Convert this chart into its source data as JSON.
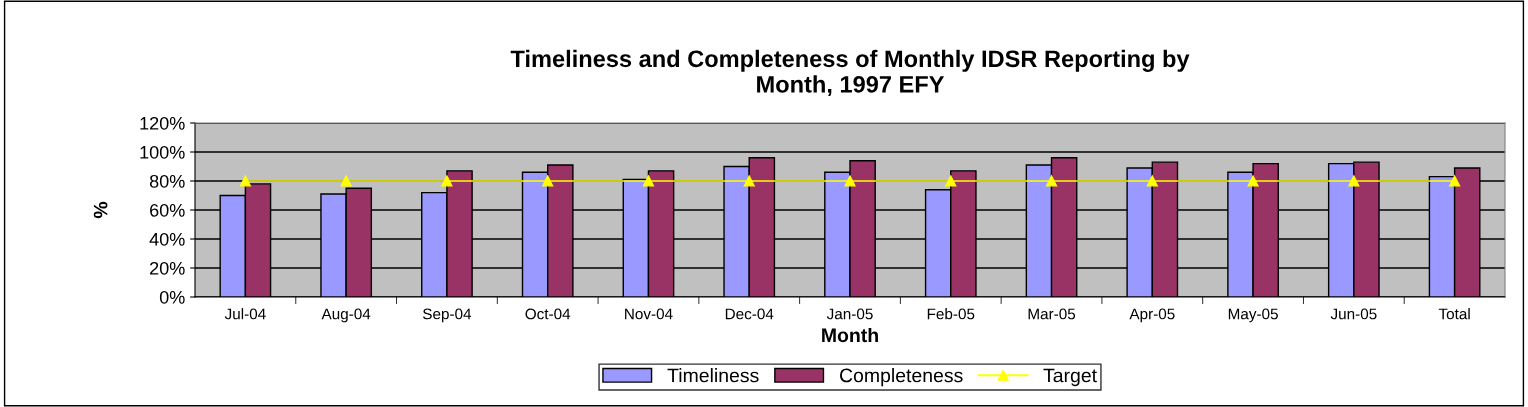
{
  "chart_data": {
    "type": "bar",
    "title": "Timeliness and Completeness of Monthly IDSR Reporting by\nMonth, 1997 EFY",
    "xlabel": "Month",
    "ylabel": "%",
    "categories": [
      "Jul-04",
      "Aug-04",
      "Sep-04",
      "Oct-04",
      "Nov-04",
      "Dec-04",
      "Jan-05",
      "Feb-05",
      "Mar-05",
      "Apr-05",
      "May-05",
      "Jun-05",
      "Total"
    ],
    "series": [
      {
        "name": "Timeliness",
        "color": "#9999ff",
        "values": [
          70,
          71,
          72,
          86,
          81,
          90,
          86,
          74,
          91,
          89,
          86,
          92,
          83
        ]
      },
      {
        "name": "Completeness",
        "color": "#993366",
        "values": [
          78,
          75,
          87,
          91,
          87,
          96,
          94,
          87,
          96,
          93,
          92,
          93,
          89
        ]
      },
      {
        "name": "Target",
        "type": "line",
        "color": "#ffff00",
        "marker": "triangle",
        "values": [
          80,
          80,
          80,
          80,
          80,
          80,
          80,
          80,
          80,
          80,
          80,
          80,
          80
        ]
      }
    ],
    "ylim": [
      0,
      120
    ],
    "yticks": [
      {
        "value": 0,
        "label": "0%"
      },
      {
        "value": 20,
        "label": "20%"
      },
      {
        "value": 40,
        "label": "40%"
      },
      {
        "value": 60,
        "label": "60%"
      },
      {
        "value": 80,
        "label": "80%"
      },
      {
        "value": 100,
        "label": "100%"
      },
      {
        "value": 120,
        "label": "120%"
      }
    ],
    "grid": "y",
    "legend": "bottom"
  }
}
